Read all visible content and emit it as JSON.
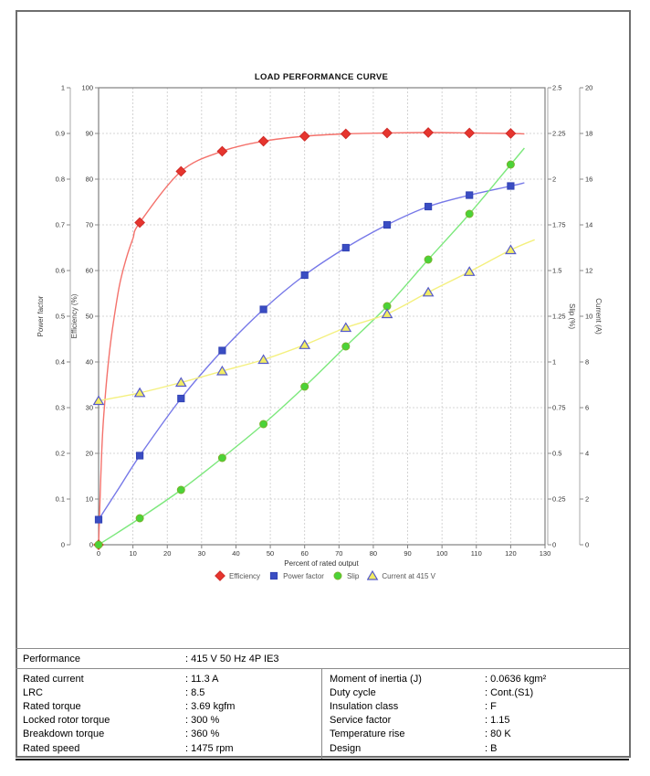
{
  "chart_data": {
    "type": "line",
    "title": "LOAD PERFORMANCE CURVE",
    "xlabel": "Percent of rated output",
    "x_ticks": [
      0,
      10,
      20,
      30,
      40,
      50,
      60,
      70,
      80,
      90,
      100,
      110,
      120,
      130
    ],
    "xlim": [
      0,
      130
    ],
    "grid": true,
    "legend_position": "bottom",
    "x": [
      0,
      12,
      24,
      36,
      48,
      60,
      72,
      84,
      96,
      108,
      120
    ],
    "axes": {
      "power_factor": {
        "label": "Power factor",
        "side": "left",
        "min": 0,
        "max": 1,
        "ticks": [
          "0",
          "0.1",
          "0.2",
          "0.3",
          "0.4",
          "0.5",
          "0.6",
          "0.7",
          "0.8",
          "0.9",
          "1"
        ]
      },
      "efficiency": {
        "label": "Efficiency (%)",
        "side": "left",
        "min": 0,
        "max": 100,
        "ticks": [
          "0",
          "10",
          "20",
          "30",
          "40",
          "50",
          "60",
          "70",
          "80",
          "90",
          "100"
        ]
      },
      "slip": {
        "label": "Slip (%)",
        "side": "right",
        "min": 0,
        "max": 2.5,
        "ticks": [
          "0",
          "0.25",
          "0.5",
          "0.75",
          "1",
          "1.25",
          "1.5",
          "1.75",
          "2",
          "2.25",
          "2.5"
        ]
      },
      "current": {
        "label": "Current (A)",
        "side": "right",
        "min": 0,
        "max": 20,
        "ticks": [
          "0",
          "2",
          "4",
          "6",
          "8",
          "10",
          "12",
          "14",
          "16",
          "18",
          "20"
        ]
      }
    },
    "series": [
      {
        "name": "Efficiency",
        "axis": "efficiency",
        "marker": "diamond",
        "marker_color": "#e6352e",
        "marker_edge": "#cf2b28",
        "line_color": "#f4726c",
        "values": [
          0,
          70.5,
          81.7,
          86.1,
          88.3,
          89.4,
          89.9,
          90.1,
          90.2,
          90.1,
          90.0
        ],
        "line_points": [
          [
            0,
            0
          ],
          [
            1,
            22
          ],
          [
            2,
            33
          ],
          [
            3,
            41
          ],
          [
            4,
            47
          ],
          [
            6,
            56.5
          ],
          [
            8,
            62.5
          ],
          [
            10,
            67
          ],
          [
            12,
            70.5
          ],
          [
            24,
            81.7
          ],
          [
            36,
            86.1
          ],
          [
            48,
            88.3
          ],
          [
            60,
            89.4
          ],
          [
            72,
            89.9
          ],
          [
            84,
            90.1
          ],
          [
            96,
            90.2
          ],
          [
            108,
            90.1
          ],
          [
            120,
            90.0
          ],
          [
            124,
            89.9
          ]
        ]
      },
      {
        "name": "Power factor",
        "axis": "power_factor",
        "marker": "square",
        "marker_color": "#3a4dc3",
        "marker_edge": "#3343b5",
        "line_color": "#7678e8",
        "values": [
          0.055,
          0.195,
          0.32,
          0.425,
          0.515,
          0.59,
          0.65,
          0.7,
          0.74,
          0.765,
          0.785
        ],
        "line_points": [
          [
            0,
            0.055
          ],
          [
            6,
            0.125
          ],
          [
            12,
            0.195
          ],
          [
            24,
            0.32
          ],
          [
            36,
            0.425
          ],
          [
            48,
            0.515
          ],
          [
            60,
            0.59
          ],
          [
            72,
            0.65
          ],
          [
            84,
            0.7
          ],
          [
            96,
            0.74
          ],
          [
            108,
            0.765
          ],
          [
            120,
            0.785
          ],
          [
            124,
            0.792
          ]
        ]
      },
      {
        "name": "Slip",
        "axis": "slip",
        "marker": "circle",
        "marker_color": "#4ad338",
        "marker_edge": "#79b22b",
        "line_color": "#7ce87c",
        "values": [
          0,
          0.145,
          0.3,
          0.475,
          0.66,
          0.865,
          1.085,
          1.305,
          1.56,
          1.81,
          2.08
        ],
        "line_points": [
          [
            0,
            0
          ],
          [
            12,
            0.145
          ],
          [
            24,
            0.3
          ],
          [
            36,
            0.475
          ],
          [
            48,
            0.66
          ],
          [
            60,
            0.865
          ],
          [
            72,
            1.085
          ],
          [
            84,
            1.305
          ],
          [
            96,
            1.56
          ],
          [
            108,
            1.81
          ],
          [
            120,
            2.08
          ],
          [
            124,
            2.17
          ]
        ]
      },
      {
        "name": "Current at 415 V",
        "axis": "current",
        "marker": "triangle",
        "marker_color": "#f2ec63",
        "marker_edge": "#5459cb",
        "line_color": "#f4f07e",
        "values": [
          6.3,
          6.65,
          7.1,
          7.6,
          8.1,
          8.75,
          9.5,
          10.1,
          11.05,
          11.95,
          12.9
        ],
        "line_points": [
          [
            0,
            6.3
          ],
          [
            12,
            6.65
          ],
          [
            24,
            7.1
          ],
          [
            36,
            7.6
          ],
          [
            48,
            8.1
          ],
          [
            60,
            8.75
          ],
          [
            72,
            9.5
          ],
          [
            84,
            10.1
          ],
          [
            96,
            11.05
          ],
          [
            108,
            11.95
          ],
          [
            120,
            12.9
          ],
          [
            127,
            13.35
          ]
        ]
      }
    ]
  },
  "table": {
    "performance_label": "Performance",
    "performance_value": ": 415 V 50 Hz 4P IE3",
    "left_rows": [
      {
        "label": "Rated current",
        "value": ": 11.3 A"
      },
      {
        "label": "LRC",
        "value": ": 8.5"
      },
      {
        "label": "Rated torque",
        "value": ": 3.69 kgfm"
      },
      {
        "label": "Locked rotor torque",
        "value": ": 300 %"
      },
      {
        "label": "Breakdown torque",
        "value": ": 360 %"
      },
      {
        "label": "Rated speed",
        "value": ": 1475 rpm"
      }
    ],
    "right_rows": [
      {
        "label": "Moment of inertia (J)",
        "value": ": 0.0636 kgm²"
      },
      {
        "label": "Duty cycle",
        "value": ": Cont.(S1)"
      },
      {
        "label": "Insulation class",
        "value": ": F"
      },
      {
        "label": "Service factor",
        "value": ": 1.15"
      },
      {
        "label": "Temperature rise",
        "value": ": 80 K"
      },
      {
        "label": "Design",
        "value": ": B"
      }
    ]
  }
}
